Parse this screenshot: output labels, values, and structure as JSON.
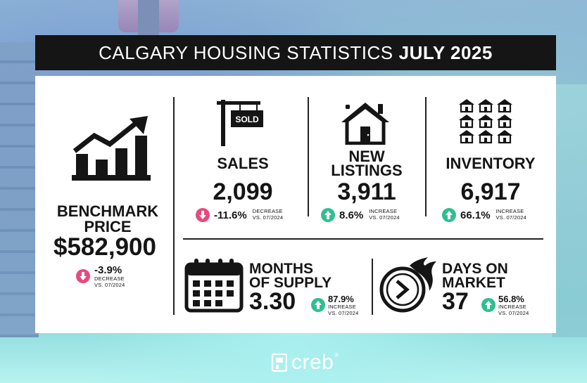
{
  "title": {
    "prefix": "CALGARY HOUSING STATISTICS",
    "emphasis": "JULY 2025"
  },
  "benchmark": {
    "label": "BENCHMARK PRICE",
    "value": "$582,900",
    "change": "-3.9%",
    "direction": "down",
    "note_line1": "DECREASE",
    "note_line2": "VS. 07/2024",
    "icon": "rising-chart-icon"
  },
  "sales": {
    "label": "SALES",
    "value": "2,099",
    "change": "-11.6%",
    "direction": "down",
    "note_line1": "DECREASE",
    "note_line2": "VS. 07/2024",
    "sign_text": "SOLD",
    "icon": "sold-sign-icon"
  },
  "new_listings": {
    "label_line1": "NEW",
    "label_line2": "LISTINGS",
    "value": "3,911",
    "change": "8.6%",
    "direction": "up",
    "note_line1": "INCREASE",
    "note_line2": "VS. 07/2024",
    "icon": "new-house-icon"
  },
  "inventory": {
    "label": "INVENTORY",
    "value": "6,917",
    "change": "66.1%",
    "direction": "up",
    "note_line1": "INCREASE",
    "note_line2": "VS. 07/2024",
    "icon": "houses-grid-icon"
  },
  "months_of_supply": {
    "label_line1": "MONTHS",
    "label_line2": "OF SUPPLY",
    "value": "3.30",
    "change": "87.9%",
    "direction": "up",
    "note_line1": "INCREASE",
    "note_line2": "VS. 07/2024",
    "icon": "calendar-icon"
  },
  "days_on_market": {
    "label_line1": "DAYS ON",
    "label_line2": "MARKET",
    "value": "37",
    "change": "56.8%",
    "direction": "up",
    "note_line1": "INCREASE",
    "note_line2": "VS. 07/2024",
    "icon": "fast-clock-icon"
  },
  "footer": {
    "brand": "creb",
    "mark": "®"
  },
  "colors": {
    "down": "#e8497a",
    "up": "#2fbf8f",
    "title_bg": "#151515"
  }
}
